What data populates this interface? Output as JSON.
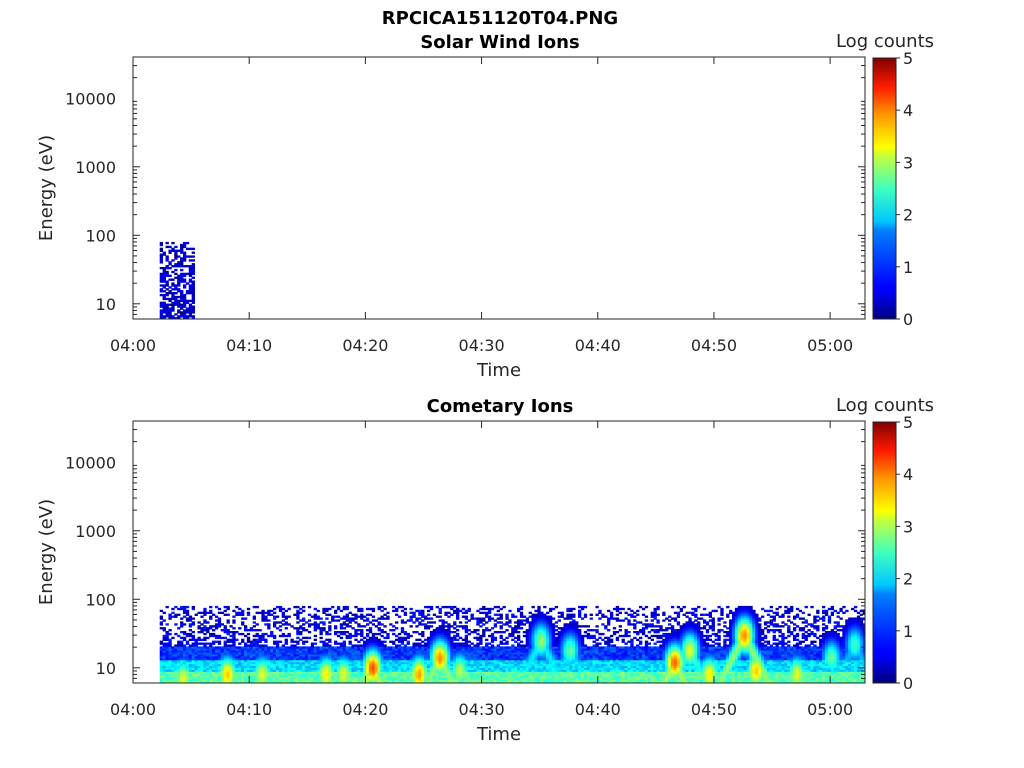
{
  "figure": {
    "suptitle": "RPCICA151120T04.PNG"
  },
  "colors": {
    "colormap": "jet",
    "background": "#ffffff",
    "axis": "#262626"
  },
  "chart_data": [
    {
      "type": "heatmap",
      "title": "Solar Wind Ions",
      "xlabel": "Time",
      "ylabel": "Energy (eV)",
      "y_scale": "log",
      "xlim": [
        "04:00",
        "05:03"
      ],
      "ylim": [
        6,
        40000
      ],
      "x_ticks": [
        "04:00",
        "04:10",
        "04:20",
        "04:30",
        "04:40",
        "04:50",
        "05:00"
      ],
      "y_ticks": [
        10,
        100,
        1000,
        10000
      ],
      "y_tick_labels": [
        "10",
        "100",
        "1000",
        "10000"
      ],
      "colorbar": {
        "label": "Log counts",
        "range": [
          0,
          5
        ],
        "ticks": [
          "0",
          "1",
          "2",
          "3",
          "4",
          "5"
        ]
      },
      "data_extent": {
        "time_start": "04:02.3",
        "time_end": "04:05.2",
        "energy_max": 80
      },
      "features": []
    },
    {
      "type": "heatmap",
      "title": "Cometary Ions",
      "xlabel": "Time",
      "ylabel": "Energy (eV)",
      "y_scale": "log",
      "xlim": [
        "04:00",
        "05:03"
      ],
      "ylim": [
        6,
        40000
      ],
      "x_ticks": [
        "04:00",
        "04:10",
        "04:20",
        "04:30",
        "04:40",
        "04:50",
        "05:00"
      ],
      "y_ticks": [
        10,
        100,
        1000,
        10000
      ],
      "y_tick_labels": [
        "10",
        "100",
        "1000",
        "10000"
      ],
      "colorbar": {
        "label": "Log counts",
        "range": [
          0,
          5
        ],
        "ticks": [
          "0",
          "1",
          "2",
          "3",
          "4",
          "5"
        ]
      },
      "data_extent": {
        "time_start": "04:02.3",
        "time_end": "05:03",
        "energy_max": 80
      },
      "features": [
        {
          "t": 4.2,
          "e": 7,
          "c": 3.0
        },
        {
          "t": 8,
          "e": 8,
          "c": 3.4
        },
        {
          "t": 11,
          "e": 8,
          "c": 3.0
        },
        {
          "t": 16.5,
          "e": 8,
          "c": 3.2
        },
        {
          "t": 18,
          "e": 8,
          "c": 3.0
        },
        {
          "t": 20.5,
          "e": 10,
          "c": 4.0
        },
        {
          "t": 24.5,
          "e": 8,
          "c": 3.6
        },
        {
          "t": 26.3,
          "e": 14,
          "c": 3.7
        },
        {
          "t": 28,
          "e": 9,
          "c": 2.8
        },
        {
          "t": 35,
          "e": 25,
          "c": 2.6
        },
        {
          "t": 37.5,
          "e": 18,
          "c": 2.4
        },
        {
          "t": 46.5,
          "e": 12,
          "c": 3.9
        },
        {
          "t": 47.8,
          "e": 18,
          "c": 3.0
        },
        {
          "t": 49.5,
          "e": 8,
          "c": 3.2
        },
        {
          "t": 52.5,
          "e": 30,
          "c": 3.7
        },
        {
          "t": 53.5,
          "e": 9,
          "c": 3.4
        },
        {
          "t": 57,
          "e": 8,
          "c": 3.0
        },
        {
          "t": 60,
          "e": 14,
          "c": 2.4
        },
        {
          "t": 62,
          "e": 22,
          "c": 2.2
        }
      ]
    }
  ]
}
